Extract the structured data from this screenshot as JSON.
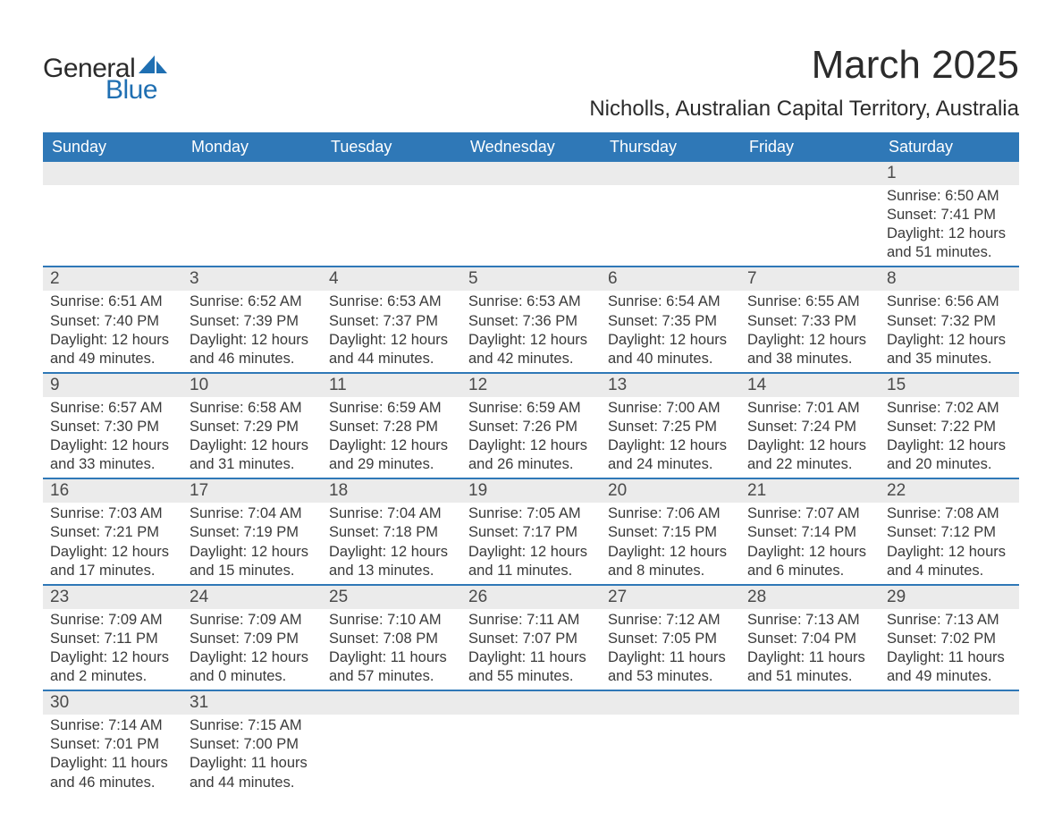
{
  "logo": {
    "word1": "General",
    "word2": "Blue",
    "accent_color": "#1f6fb2"
  },
  "title": "March 2025",
  "location": "Nicholls, Australian Capital Territory, Australia",
  "colors": {
    "header_bg": "#2f78b7",
    "header_text": "#ffffff",
    "band_bg": "#ebebeb",
    "divider": "#2f78b7",
    "body_text": "#3a3a3a"
  },
  "typography": {
    "title_fontsize": 44,
    "location_fontsize": 24,
    "dow_fontsize": 18,
    "daynum_fontsize": 19,
    "body_fontsize": 16.5
  },
  "days_of_week": [
    "Sunday",
    "Monday",
    "Tuesday",
    "Wednesday",
    "Thursday",
    "Friday",
    "Saturday"
  ],
  "weeks": [
    [
      null,
      null,
      null,
      null,
      null,
      null,
      {
        "n": 1,
        "sunrise": "6:50 AM",
        "sunset": "7:41 PM",
        "dh": 12,
        "dm": 51
      }
    ],
    [
      {
        "n": 2,
        "sunrise": "6:51 AM",
        "sunset": "7:40 PM",
        "dh": 12,
        "dm": 49
      },
      {
        "n": 3,
        "sunrise": "6:52 AM",
        "sunset": "7:39 PM",
        "dh": 12,
        "dm": 46
      },
      {
        "n": 4,
        "sunrise": "6:53 AM",
        "sunset": "7:37 PM",
        "dh": 12,
        "dm": 44
      },
      {
        "n": 5,
        "sunrise": "6:53 AM",
        "sunset": "7:36 PM",
        "dh": 12,
        "dm": 42
      },
      {
        "n": 6,
        "sunrise": "6:54 AM",
        "sunset": "7:35 PM",
        "dh": 12,
        "dm": 40
      },
      {
        "n": 7,
        "sunrise": "6:55 AM",
        "sunset": "7:33 PM",
        "dh": 12,
        "dm": 38
      },
      {
        "n": 8,
        "sunrise": "6:56 AM",
        "sunset": "7:32 PM",
        "dh": 12,
        "dm": 35
      }
    ],
    [
      {
        "n": 9,
        "sunrise": "6:57 AM",
        "sunset": "7:30 PM",
        "dh": 12,
        "dm": 33
      },
      {
        "n": 10,
        "sunrise": "6:58 AM",
        "sunset": "7:29 PM",
        "dh": 12,
        "dm": 31
      },
      {
        "n": 11,
        "sunrise": "6:59 AM",
        "sunset": "7:28 PM",
        "dh": 12,
        "dm": 29
      },
      {
        "n": 12,
        "sunrise": "6:59 AM",
        "sunset": "7:26 PM",
        "dh": 12,
        "dm": 26
      },
      {
        "n": 13,
        "sunrise": "7:00 AM",
        "sunset": "7:25 PM",
        "dh": 12,
        "dm": 24
      },
      {
        "n": 14,
        "sunrise": "7:01 AM",
        "sunset": "7:24 PM",
        "dh": 12,
        "dm": 22
      },
      {
        "n": 15,
        "sunrise": "7:02 AM",
        "sunset": "7:22 PM",
        "dh": 12,
        "dm": 20
      }
    ],
    [
      {
        "n": 16,
        "sunrise": "7:03 AM",
        "sunset": "7:21 PM",
        "dh": 12,
        "dm": 17
      },
      {
        "n": 17,
        "sunrise": "7:04 AM",
        "sunset": "7:19 PM",
        "dh": 12,
        "dm": 15
      },
      {
        "n": 18,
        "sunrise": "7:04 AM",
        "sunset": "7:18 PM",
        "dh": 12,
        "dm": 13
      },
      {
        "n": 19,
        "sunrise": "7:05 AM",
        "sunset": "7:17 PM",
        "dh": 12,
        "dm": 11
      },
      {
        "n": 20,
        "sunrise": "7:06 AM",
        "sunset": "7:15 PM",
        "dh": 12,
        "dm": 8
      },
      {
        "n": 21,
        "sunrise": "7:07 AM",
        "sunset": "7:14 PM",
        "dh": 12,
        "dm": 6
      },
      {
        "n": 22,
        "sunrise": "7:08 AM",
        "sunset": "7:12 PM",
        "dh": 12,
        "dm": 4
      }
    ],
    [
      {
        "n": 23,
        "sunrise": "7:09 AM",
        "sunset": "7:11 PM",
        "dh": 12,
        "dm": 2
      },
      {
        "n": 24,
        "sunrise": "7:09 AM",
        "sunset": "7:09 PM",
        "dh": 12,
        "dm": 0
      },
      {
        "n": 25,
        "sunrise": "7:10 AM",
        "sunset": "7:08 PM",
        "dh": 11,
        "dm": 57
      },
      {
        "n": 26,
        "sunrise": "7:11 AM",
        "sunset": "7:07 PM",
        "dh": 11,
        "dm": 55
      },
      {
        "n": 27,
        "sunrise": "7:12 AM",
        "sunset": "7:05 PM",
        "dh": 11,
        "dm": 53
      },
      {
        "n": 28,
        "sunrise": "7:13 AM",
        "sunset": "7:04 PM",
        "dh": 11,
        "dm": 51
      },
      {
        "n": 29,
        "sunrise": "7:13 AM",
        "sunset": "7:02 PM",
        "dh": 11,
        "dm": 49
      }
    ],
    [
      {
        "n": 30,
        "sunrise": "7:14 AM",
        "sunset": "7:01 PM",
        "dh": 11,
        "dm": 46
      },
      {
        "n": 31,
        "sunrise": "7:15 AM",
        "sunset": "7:00 PM",
        "dh": 11,
        "dm": 44
      },
      null,
      null,
      null,
      null,
      null
    ]
  ],
  "labels": {
    "sunrise": "Sunrise:",
    "sunset": "Sunset:",
    "daylight": "Daylight:",
    "hours": "hours",
    "and": "and",
    "minutes": "minutes."
  }
}
